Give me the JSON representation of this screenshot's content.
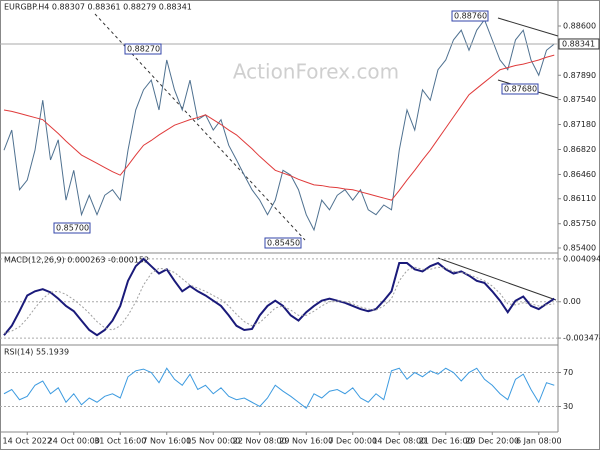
{
  "chart_data": [
    {
      "type": "line",
      "title": "EURGBP.H4  0.88307 0.88361 0.88279 0.88341",
      "watermark": "ActionForex.com",
      "ylim": [
        0.85328,
        0.88773
      ],
      "yticks": [
        {
          "value": 0.886,
          "label": "0.88600"
        },
        {
          "value": 0.8789,
          "label": "0.87890"
        },
        {
          "value": 0.8754,
          "label": "0.87540"
        },
        {
          "value": 0.8718,
          "label": "0.87180"
        },
        {
          "value": 0.8682,
          "label": "0.86820"
        },
        {
          "value": 0.8646,
          "label": "0.86460"
        },
        {
          "value": 0.8611,
          "label": "0.86110"
        },
        {
          "value": 0.8575,
          "label": "0.85750"
        },
        {
          "value": 0.854,
          "label": "0.85400"
        }
      ],
      "last_price": 0.88341,
      "annotations": [
        "0.88760",
        "0.88270",
        "0.85700",
        "0.85450",
        "0.87680"
      ],
      "series": [
        {
          "color": "#4f7190",
          "values": [
            0.8681,
            0.871,
            0.8624,
            0.8638,
            0.8681,
            0.8753,
            0.8667,
            0.8696,
            0.8609,
            0.8652,
            0.8588,
            0.8616,
            0.8588,
            0.8616,
            0.8624,
            0.8609,
            0.8681,
            0.8739,
            0.8768,
            0.8782,
            0.8739,
            0.8811,
            0.8768,
            0.8739,
            0.8782,
            0.8725,
            0.8732,
            0.871,
            0.8725,
            0.8688,
            0.8667,
            0.8645,
            0.8624,
            0.8609,
            0.8588,
            0.8609,
            0.8652,
            0.8645,
            0.8624,
            0.8588,
            0.8566,
            0.8609,
            0.8595,
            0.8616,
            0.8624,
            0.8609,
            0.8624,
            0.8595,
            0.8588,
            0.8602,
            0.8595,
            0.8681,
            0.8739,
            0.871,
            0.8768,
            0.8753,
            0.8797,
            0.8811,
            0.884,
            0.8854,
            0.8825,
            0.8854,
            0.8869,
            0.884,
            0.8811,
            0.8797,
            0.884,
            0.8854,
            0.8811,
            0.8789,
            0.8825,
            0.8834
          ]
        },
        {
          "color": "#e03b3b",
          "values": [
            0.8739,
            0.8737,
            0.8734,
            0.8731,
            0.8728,
            0.8725,
            0.8715,
            0.8705,
            0.8694,
            0.8684,
            0.8674,
            0.8668,
            0.8662,
            0.8656,
            0.865,
            0.8645,
            0.8659,
            0.8674,
            0.8688,
            0.8695,
            0.8703,
            0.871,
            0.8717,
            0.8721,
            0.8725,
            0.8728,
            0.8732,
            0.8725,
            0.8718,
            0.871,
            0.8703,
            0.8693,
            0.8683,
            0.8672,
            0.8662,
            0.8652,
            0.8648,
            0.8644,
            0.8639,
            0.8635,
            0.8631,
            0.863,
            0.8628,
            0.8627,
            0.8625,
            0.8624,
            0.8621,
            0.8618,
            0.8615,
            0.8612,
            0.8609,
            0.8623,
            0.8638,
            0.8652,
            0.8667,
            0.8681,
            0.8697,
            0.8713,
            0.8729,
            0.8745,
            0.8761,
            0.877,
            0.8779,
            0.8788,
            0.8797,
            0.88,
            0.8803,
            0.8805,
            0.8808,
            0.8811,
            0.8815,
            0.8818
          ]
        }
      ]
    },
    {
      "type": "line",
      "title": "MACD(12,26,9) 0.000263 -0.000152",
      "ylim": [
        -0.00404,
        0.00447
      ],
      "grid": true,
      "yticks": [
        0.004094,
        {
          "value": 0,
          "label": "0.00"
        },
        -0.003474
      ],
      "series": [
        {
          "color": "#1a1a7a",
          "values": [
            -0.0032,
            -0.0023,
            -0.0009,
            0.0006,
            0.001,
            0.0012,
            0.0009,
            0.0003,
            -0.0004,
            -0.0009,
            -0.0018,
            -0.0027,
            -0.0032,
            -0.0027,
            -0.0018,
            -0.0004,
            0.002,
            0.0034,
            0.0041,
            0.0034,
            0.0027,
            0.0031,
            0.002,
            0.001,
            0.0015,
            0.001,
            0.0006,
            0.0001,
            -0.0004,
            -0.0013,
            -0.0023,
            -0.0027,
            -0.0026,
            -0.0013,
            -0.0004,
            0.0001,
            -0.0004,
            -0.0013,
            -0.0018,
            -0.001,
            -0.0004,
            0.0001,
            0.0003,
            0.0001,
            -0.0001,
            -0.0004,
            -0.0007,
            -0.0009,
            -0.0007,
            0.0001,
            0.001,
            0.0037,
            0.0037,
            0.0031,
            0.0029,
            0.0034,
            0.0037,
            0.0031,
            0.0027,
            0.0029,
            0.0025,
            0.002,
            0.0018,
            0.001,
            0.0001,
            -0.001,
            0.0001,
            0.0005,
            -0.0004,
            -0.0007,
            -0.0002,
            0.0003
          ]
        },
        {
          "color": "#a0a0a0",
          "values": [
            -0.003,
            -0.0028,
            -0.0024,
            -0.0016,
            -0.0006,
            0.0003,
            0.0009,
            0.001,
            0.0007,
            0.0002,
            -0.0004,
            -0.0011,
            -0.0019,
            -0.0025,
            -0.0027,
            -0.0023,
            -0.0013,
            0.0,
            0.0016,
            0.0027,
            0.0032,
            0.0031,
            0.0028,
            0.0022,
            0.0016,
            0.0013,
            0.001,
            0.0006,
            0.0002,
            -0.0004,
            -0.0012,
            -0.0019,
            -0.0023,
            -0.002,
            -0.0013,
            -0.0006,
            -0.0004,
            -0.0008,
            -0.0013,
            -0.0013,
            -0.0009,
            -0.0004,
            0.0,
            0.0001,
            0.0,
            -0.0002,
            -0.0005,
            -0.0007,
            -0.0008,
            -0.0004,
            0.0003,
            0.002,
            0.003,
            0.0033,
            0.0031,
            0.0031,
            0.0033,
            0.0032,
            0.0029,
            0.0028,
            0.0026,
            0.0023,
            0.002,
            0.0015,
            0.0008,
            -0.0002,
            -0.0003,
            -0.0001,
            -0.0002,
            -0.0004,
            -0.0003,
            -0.0002
          ]
        }
      ]
    },
    {
      "type": "line",
      "title": "RSI(14) 55.1939",
      "ylim": [
        0,
        100
      ],
      "grid": true,
      "yticks": [
        70,
        30
      ],
      "categories": [
        null,
        null,
        null,
        "14 Oct 2022",
        null,
        null,
        null,
        null,
        null,
        "24 Oct 00:00",
        null,
        null,
        null,
        null,
        null,
        "31 Oct 16:00",
        null,
        null,
        null,
        null,
        null,
        "7 Nov 16:00",
        null,
        null,
        null,
        null,
        null,
        "15 Nov 00:00",
        null,
        null,
        null,
        null,
        null,
        "22 Nov 08:00",
        null,
        null,
        null,
        null,
        null,
        "29 Nov 16:00",
        null,
        null,
        null,
        null,
        null,
        "7 Dec 00:00",
        null,
        null,
        null,
        null,
        null,
        "14 Dec 08:00",
        null,
        null,
        null,
        null,
        null,
        "21 Dec 16:00",
        null,
        null,
        null,
        null,
        null,
        "29 Dec 20:00",
        null,
        null,
        null,
        null,
        null,
        "6 Jan 08:00",
        null,
        null
      ],
      "series": [
        {
          "color": "#3d9be0",
          "values": [
            45,
            50,
            38,
            42,
            55,
            60,
            45,
            52,
            35,
            45,
            32,
            40,
            35,
            42,
            45,
            40,
            65,
            72,
            74,
            70,
            58,
            75,
            62,
            55,
            68,
            50,
            55,
            45,
            52,
            42,
            38,
            40,
            35,
            30,
            40,
            55,
            48,
            42,
            35,
            28,
            45,
            40,
            48,
            50,
            45,
            52,
            40,
            35,
            45,
            38,
            72,
            75,
            62,
            70,
            65,
            72,
            68,
            75,
            70,
            60,
            70,
            75,
            62,
            55,
            45,
            38,
            62,
            68,
            50,
            35,
            58,
            55
          ]
        }
      ]
    }
  ]
}
